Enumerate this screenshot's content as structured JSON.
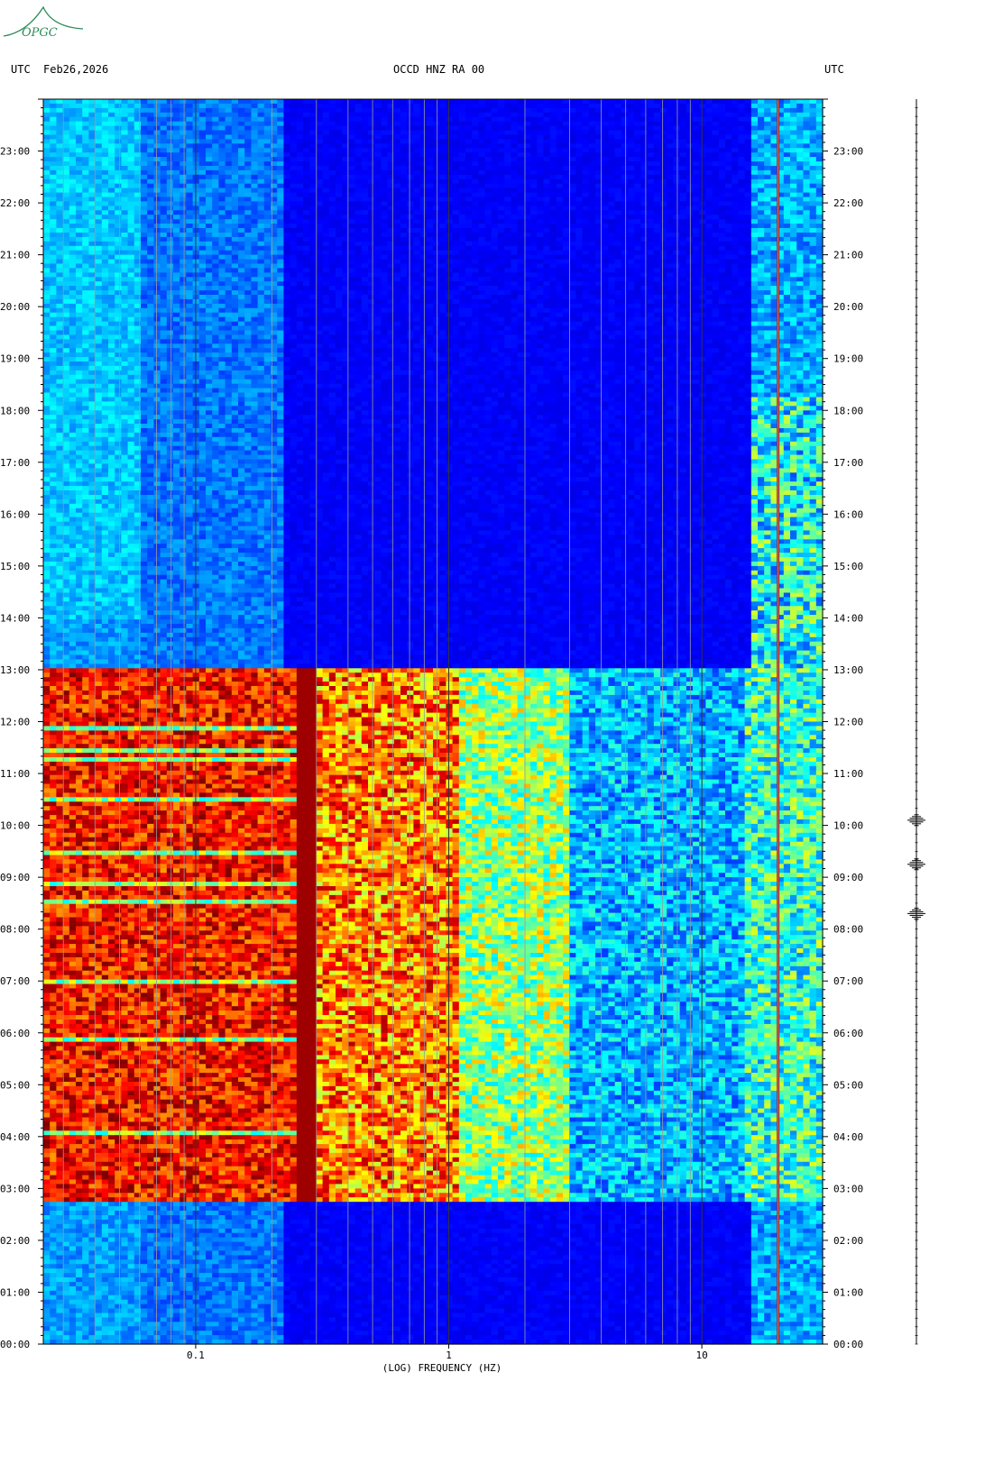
{
  "header": {
    "left_tz": "UTC",
    "date": "Feb26,2026",
    "station": "OCCD HNZ RA 00",
    "right_tz": "UTC"
  },
  "logo": {
    "text": "OPGC",
    "color": "#2e8b57"
  },
  "chart_data": {
    "type": "heatmap",
    "title": "OCCD HNZ RA 00",
    "xlabel": "(LOG) FREQUENCY (HZ)",
    "x_scale": "log",
    "xlim": [
      0.025,
      30
    ],
    "x_tick_labels": [
      {
        "value": 0.1,
        "label": "0.1"
      },
      {
        "value": 1,
        "label": "1"
      },
      {
        "value": 10,
        "label": "10"
      }
    ],
    "y_time_labels": [
      "00:00",
      "01:00",
      "02:00",
      "03:00",
      "04:00",
      "05:00",
      "06:00",
      "07:00",
      "08:00",
      "09:00",
      "10:00",
      "11:00",
      "12:00",
      "13:00",
      "14:00",
      "15:00",
      "16:00",
      "17:00",
      "18:00",
      "19:00",
      "20:00",
      "21:00",
      "22:00",
      "23:00"
    ],
    "ylim_hours": [
      0,
      24
    ],
    "grid": true,
    "colormap": [
      "#00007f",
      "#0000ff",
      "#0080ff",
      "#00ffff",
      "#80ff80",
      "#ffff00",
      "#ff8000",
      "#ff0000",
      "#7f0000"
    ],
    "high_energy_period_hours": [
      2.7,
      13.05
    ],
    "persistent_line_hz": 20,
    "event_marks_hours": [
      8.3,
      9.25,
      10.1
    ]
  }
}
